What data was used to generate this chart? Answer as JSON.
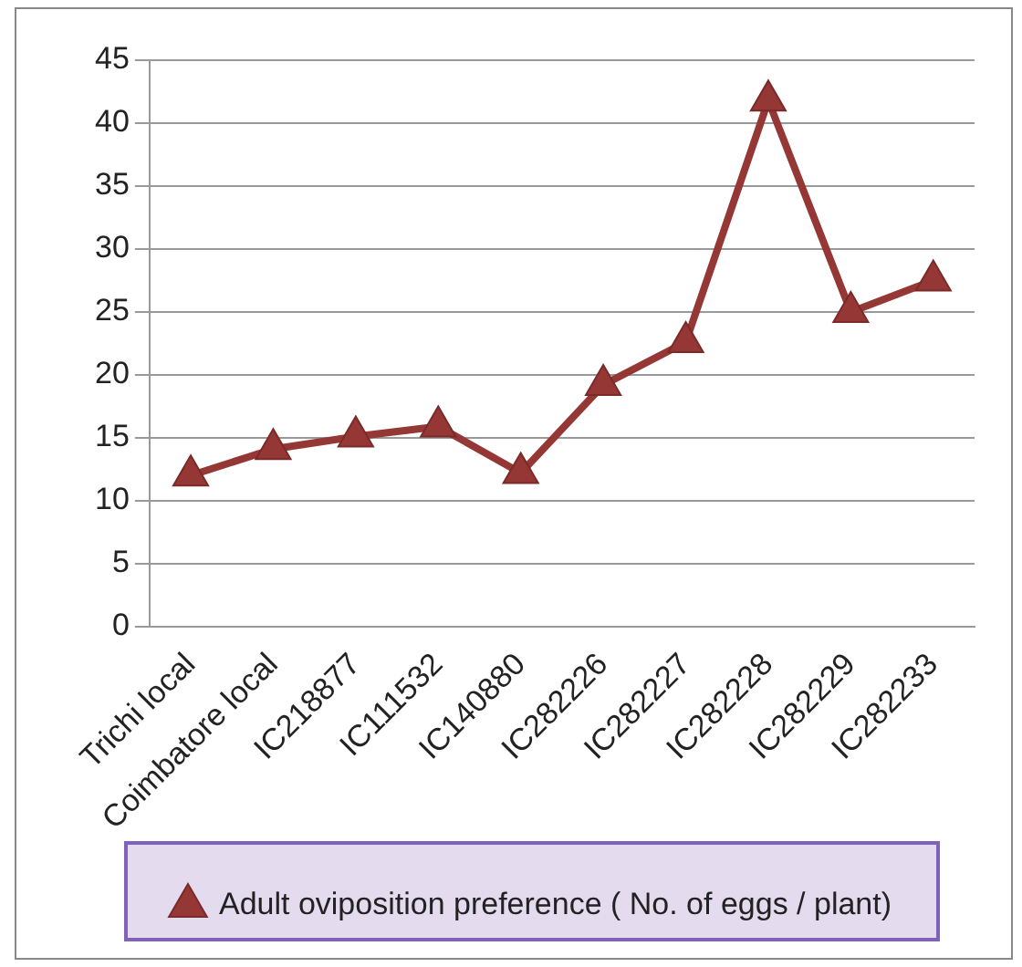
{
  "chart_data": {
    "type": "line",
    "categories": [
      "Trichi local",
      "Coimbatore local",
      "IC218877",
      "IC111532",
      "IC140880",
      "IC282226",
      "IC282227",
      "IC282228",
      "IC282229",
      "IC282233"
    ],
    "series": [
      {
        "name": "Adult oviposition preference ( No. of eggs / plant)",
        "color": "#953735",
        "values": [
          12,
          14.1,
          15.1,
          15.9,
          12.2,
          19.2,
          22.6,
          41.8,
          25,
          27.5
        ]
      }
    ],
    "ylim": [
      0,
      45
    ],
    "yticks": [
      0,
      5,
      10,
      15,
      20,
      25,
      30,
      35,
      40,
      45
    ],
    "grid": "y",
    "legend": "bottom",
    "marker": "triangle",
    "line_style": "solid"
  }
}
